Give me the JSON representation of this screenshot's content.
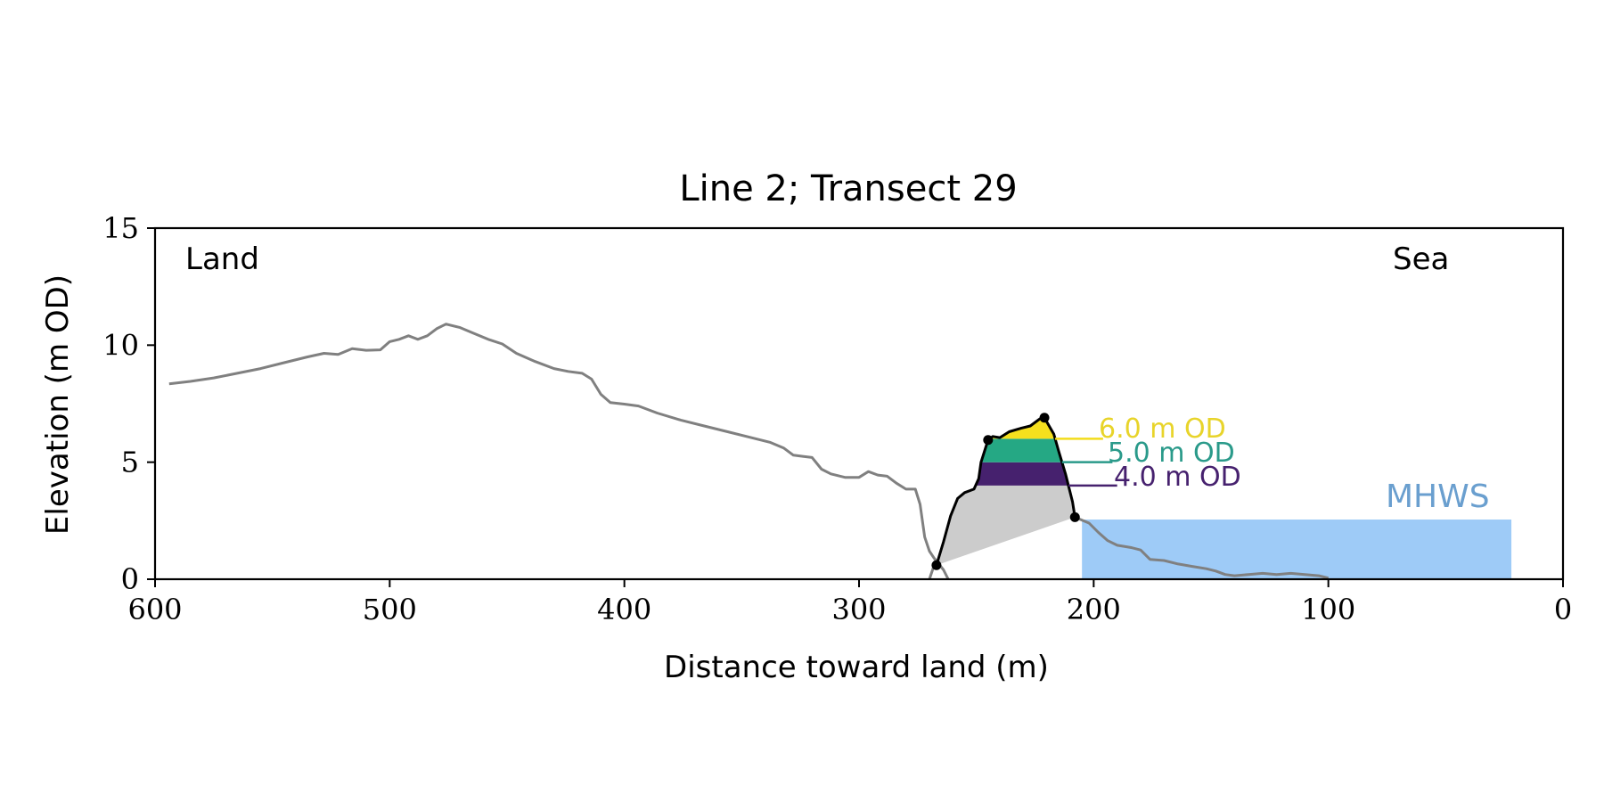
{
  "chart_data": {
    "type": "line",
    "title": "Line 2; Transect 29",
    "xlabel": "Distance toward land (m)",
    "ylabel": "Elevation (m OD)",
    "xlim": [
      600,
      0
    ],
    "ylim": [
      0,
      15
    ],
    "x_reversed": true,
    "grid": false,
    "xticks": [
      600,
      500,
      400,
      300,
      200,
      100,
      0
    ],
    "xtick_labels": [
      "600",
      "500",
      "400",
      "300",
      "200",
      "100",
      "0"
    ],
    "yticks": [
      0,
      5,
      10,
      15
    ],
    "ytick_labels": [
      "0",
      "5",
      "10",
      "15"
    ],
    "annotations": {
      "land": "Land",
      "sea": "Sea",
      "mhws": "MHWS"
    },
    "mhws": {
      "elevation": 2.55,
      "x_from": 205,
      "x_to": 22,
      "color": "#9ecbf7",
      "label_color": "#6a9fcf"
    },
    "colors": {
      "profile": "#808080",
      "dune_outline": "#000000",
      "below_levels_fill": "#cccccc",
      "level_4": "#46216e",
      "level_5": "#25a884",
      "level_6": "#f5e01e"
    },
    "levels": [
      {
        "label": "6.0 m OD",
        "elevation": 6.0,
        "color": "#e8d42a",
        "line_color": "#f2dc1c"
      },
      {
        "label": "5.0 m OD",
        "elevation": 5.0,
        "color": "#2a9a8a",
        "line_color": "#2a9a8a"
      },
      {
        "label": "4.0 m OD",
        "elevation": 4.0,
        "color": "#46216e",
        "line_color": "#46216e"
      }
    ],
    "series": [
      {
        "role": "profile",
        "segments": [
          [
            [
              594,
              8.35
            ],
            [
              585,
              8.45
            ],
            [
              575,
              8.6
            ],
            [
              565,
              8.8
            ],
            [
              555,
              9.0
            ],
            [
              545,
              9.25
            ],
            [
              535,
              9.5
            ],
            [
              528,
              9.65
            ],
            [
              522,
              9.6
            ],
            [
              516,
              9.85
            ],
            [
              510,
              9.78
            ],
            [
              504,
              9.8
            ],
            [
              500,
              10.15
            ],
            [
              496,
              10.25
            ],
            [
              492,
              10.4
            ],
            [
              488,
              10.25
            ],
            [
              484,
              10.4
            ],
            [
              480,
              10.7
            ],
            [
              476,
              10.9
            ],
            [
              470,
              10.75
            ],
            [
              464,
              10.5
            ],
            [
              458,
              10.25
            ],
            [
              452,
              10.05
            ],
            [
              446,
              9.65
            ],
            [
              438,
              9.3
            ],
            [
              430,
              9.0
            ],
            [
              424,
              8.88
            ],
            [
              418,
              8.8
            ],
            [
              414,
              8.55
            ],
            [
              410,
              7.9
            ],
            [
              406,
              7.55
            ],
            [
              400,
              7.48
            ],
            [
              394,
              7.4
            ],
            [
              386,
              7.1
            ],
            [
              376,
              6.8
            ],
            [
              366,
              6.55
            ],
            [
              356,
              6.3
            ],
            [
              346,
              6.05
            ],
            [
              338,
              5.85
            ],
            [
              332,
              5.6
            ],
            [
              328,
              5.3
            ],
            [
              324,
              5.25
            ],
            [
              320,
              5.2
            ],
            [
              316,
              4.7
            ],
            [
              312,
              4.5
            ],
            [
              306,
              4.35
            ],
            [
              300,
              4.35
            ],
            [
              296,
              4.6
            ],
            [
              292,
              4.45
            ],
            [
              288,
              4.4
            ],
            [
              284,
              4.1
            ],
            [
              280,
              3.85
            ],
            [
              276,
              3.85
            ],
            [
              274,
              3.2
            ],
            [
              272,
              1.8
            ],
            [
              270,
              1.2
            ],
            [
              268,
              0.9
            ],
            [
              264,
              0.4
            ],
            [
              262,
              0.0
            ]
          ],
          [
            [
              270,
              0.0
            ],
            [
              268,
              0.6
            ]
          ],
          [
            [
              208,
              2.65
            ],
            [
              202,
              2.4
            ],
            [
              198,
              2.0
            ],
            [
              194,
              1.65
            ],
            [
              190,
              1.45
            ],
            [
              184,
              1.35
            ],
            [
              180,
              1.25
            ],
            [
              176,
              0.85
            ],
            [
              170,
              0.8
            ],
            [
              164,
              0.65
            ],
            [
              158,
              0.55
            ],
            [
              152,
              0.45
            ],
            [
              148,
              0.35
            ],
            [
              144,
              0.2
            ],
            [
              140,
              0.15
            ],
            [
              134,
              0.2
            ],
            [
              128,
              0.25
            ],
            [
              122,
              0.2
            ],
            [
              116,
              0.25
            ],
            [
              110,
              0.2
            ],
            [
              104,
              0.15
            ],
            [
              100,
              0.05
            ]
          ]
        ]
      },
      {
        "role": "dune_outline",
        "points": [
          [
            267,
            0.6
          ],
          [
            264,
            1.6
          ],
          [
            261,
            2.7
          ],
          [
            258,
            3.45
          ],
          [
            255,
            3.7
          ],
          [
            251,
            3.85
          ],
          [
            249,
            4.3
          ],
          [
            248,
            5.0
          ],
          [
            245,
            5.95
          ],
          [
            243,
            6.1
          ],
          [
            240,
            6.05
          ],
          [
            236,
            6.3
          ],
          [
            231,
            6.45
          ],
          [
            227,
            6.55
          ],
          [
            223,
            6.85
          ],
          [
            221,
            6.9
          ],
          [
            217,
            6.2
          ],
          [
            215,
            5.5
          ],
          [
            212,
            4.5
          ],
          [
            209,
            3.3
          ],
          [
            208,
            2.65
          ]
        ]
      }
    ],
    "key_points": [
      [
        267,
        0.6
      ],
      [
        245,
        5.95
      ],
      [
        221,
        6.9
      ],
      [
        208,
        2.65
      ]
    ]
  }
}
